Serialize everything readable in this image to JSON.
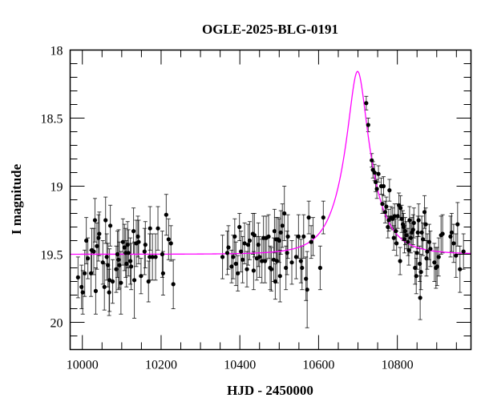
{
  "chart_data": {
    "type": "scatter",
    "title": "OGLE-2025-BLG-0191",
    "xlabel": "HJD - 2450000",
    "ylabel": "I magnitude",
    "xlim": [
      9969,
      10987
    ],
    "ylim": [
      20.2,
      18.0
    ],
    "y_inverted": true,
    "x_ticks": [
      10000,
      10200,
      10400,
      10600,
      10800
    ],
    "x_minor_step": 50,
    "y_ticks": [
      18,
      18.5,
      19,
      19.5,
      20
    ],
    "y_tick_labels": [
      "18",
      "18.5",
      "19",
      "19.5",
      "20"
    ],
    "y_minor_step": 0.1,
    "grid": false,
    "colors": {
      "points": "#000000",
      "errorbars": "#000000",
      "model": "#ff00ff"
    },
    "model": {
      "type": "paczynski",
      "t0": 10699,
      "tE": 70,
      "u0": 0.3,
      "baseline": 19.5
    },
    "points_format": [
      "HJD-2450000",
      "I",
      "err"
    ],
    "points": [
      [
        9989,
        19.67,
        0.15
      ],
      [
        9998,
        19.74,
        0.16
      ],
      [
        10001,
        19.78,
        0.16
      ],
      [
        10006,
        19.64,
        0.17
      ],
      [
        10010,
        19.4,
        0.17
      ],
      [
        10014,
        19.53,
        0.15
      ],
      [
        10022,
        19.64,
        0.17
      ],
      [
        10024,
        19.47,
        0.16
      ],
      [
        10029,
        19.48,
        0.17
      ],
      [
        10032,
        19.25,
        0.16
      ],
      [
        10034,
        19.77,
        0.17
      ],
      [
        10037,
        19.44,
        0.17
      ],
      [
        10041,
        19.38,
        0.17
      ],
      [
        10043,
        19.35,
        0.16
      ],
      [
        10052,
        19.56,
        0.16
      ],
      [
        10056,
        19.74,
        0.17
      ],
      [
        10059,
        19.25,
        0.17
      ],
      [
        10062,
        19.52,
        0.17
      ],
      [
        10065,
        19.58,
        0.16
      ],
      [
        10068,
        19.78,
        0.17
      ],
      [
        10069,
        19.69,
        0.23
      ],
      [
        10071,
        19.29,
        0.15
      ],
      [
        10077,
        19.7,
        0.16
      ],
      [
        10086,
        19.61,
        0.17
      ],
      [
        10089,
        19.5,
        0.17
      ],
      [
        10092,
        19.54,
        0.22
      ],
      [
        10094,
        19.58,
        0.17
      ],
      [
        10098,
        19.71,
        0.23
      ],
      [
        10103,
        19.41,
        0.17
      ],
      [
        10107,
        19.45,
        0.17
      ],
      [
        10110,
        19.49,
        0.18
      ],
      [
        10112,
        19.57,
        0.17
      ],
      [
        10115,
        19.43,
        0.17
      ],
      [
        10117,
        19.49,
        0.17
      ],
      [
        10122,
        19.55,
        0.17
      ],
      [
        10124,
        19.59,
        0.17
      ],
      [
        10130,
        19.33,
        0.17
      ],
      [
        10132,
        19.69,
        0.28
      ],
      [
        10137,
        19.42,
        0.17
      ],
      [
        10141,
        19.37,
        0.15
      ],
      [
        10143,
        19.41,
        0.16
      ],
      [
        10149,
        19.66,
        0.13
      ],
      [
        10158,
        19.48,
        0.17
      ],
      [
        10160,
        19.43,
        0.17
      ],
      [
        10168,
        19.7,
        0.15
      ],
      [
        10171,
        19.52,
        0.17
      ],
      [
        10172,
        19.31,
        0.16
      ],
      [
        10178,
        19.52,
        0.17
      ],
      [
        10186,
        19.52,
        0.17
      ],
      [
        10192,
        19.31,
        0.16
      ],
      [
        10203,
        19.5,
        0.17
      ],
      [
        10205,
        19.64,
        0.16
      ],
      [
        10213,
        19.21,
        0.15
      ],
      [
        10219,
        19.39,
        0.15
      ],
      [
        10225,
        19.42,
        0.13
      ],
      [
        10231,
        19.72,
        0.18
      ],
      [
        10356,
        19.52,
        0.16
      ],
      [
        10368,
        19.49,
        0.16
      ],
      [
        10371,
        19.45,
        0.16
      ],
      [
        10379,
        19.59,
        0.12
      ],
      [
        10383,
        19.52,
        0.16
      ],
      [
        10387,
        19.37,
        0.13
      ],
      [
        10390,
        19.57,
        0.16
      ],
      [
        10395,
        19.64,
        0.13
      ],
      [
        10399,
        19.3,
        0.1
      ],
      [
        10403,
        19.48,
        0.15
      ],
      [
        10407,
        19.54,
        0.17
      ],
      [
        10412,
        19.42,
        0.15
      ],
      [
        10418,
        19.61,
        0.13
      ],
      [
        10421,
        19.43,
        0.15
      ],
      [
        10425,
        19.4,
        0.14
      ],
      [
        10433,
        19.35,
        0.15
      ],
      [
        10435,
        19.62,
        0.14
      ],
      [
        10437,
        19.36,
        0.16
      ],
      [
        10443,
        19.53,
        0.16
      ],
      [
        10447,
        19.43,
        0.16
      ],
      [
        10450,
        19.52,
        0.15
      ],
      [
        10456,
        19.55,
        0.16
      ],
      [
        10460,
        19.38,
        0.16
      ],
      [
        10464,
        19.55,
        0.16
      ],
      [
        10467,
        19.38,
        0.16
      ],
      [
        10473,
        19.37,
        0.16
      ],
      [
        10477,
        19.6,
        0.16
      ],
      [
        10480,
        19.61,
        0.16
      ],
      [
        10486,
        19.54,
        0.16
      ],
      [
        10488,
        19.33,
        0.16
      ],
      [
        10490,
        19.7,
        0.13
      ],
      [
        10492,
        19.39,
        0.16
      ],
      [
        10494,
        19.55,
        0.16
      ],
      [
        10497,
        19.39,
        0.16
      ],
      [
        10500,
        19.4,
        0.16
      ],
      [
        10502,
        19.66,
        0.19
      ],
      [
        10504,
        19.34,
        0.16
      ],
      [
        10508,
        19.29,
        0.16
      ],
      [
        10513,
        19.2,
        0.2
      ],
      [
        10517,
        19.6,
        0.16
      ],
      [
        10520,
        19.49,
        0.16
      ],
      [
        10522,
        19.37,
        0.16
      ],
      [
        10532,
        19.56,
        0.16
      ],
      [
        10543,
        19.52,
        0.16
      ],
      [
        10549,
        19.37,
        0.16
      ],
      [
        10555,
        19.55,
        0.16
      ],
      [
        10558,
        19.6,
        0.16
      ],
      [
        10562,
        19.37,
        0.16
      ],
      [
        10568,
        19.68,
        0.16
      ],
      [
        10571,
        19.76,
        0.28
      ],
      [
        10575,
        19.23,
        0.12
      ],
      [
        10581,
        19.41,
        0.12
      ],
      [
        10586,
        19.37,
        0.14
      ],
      [
        10604,
        19.6,
        0.16
      ],
      [
        10612,
        19.23,
        0.12
      ],
      [
        10721,
        18.39,
        0.05
      ],
      [
        10726,
        18.55,
        0.05
      ],
      [
        10735,
        18.81,
        0.05
      ],
      [
        10738,
        18.88,
        0.06
      ],
      [
        10742,
        18.9,
        0.06
      ],
      [
        10745,
        18.97,
        0.07
      ],
      [
        10748,
        19.02,
        0.07
      ],
      [
        10752,
        18.91,
        0.06
      ],
      [
        10759,
        19.0,
        0.06
      ],
      [
        10762,
        19.13,
        0.07
      ],
      [
        10765,
        19.0,
        0.07
      ],
      [
        10769,
        19.19,
        0.08
      ],
      [
        10772,
        19.15,
        0.07
      ],
      [
        10776,
        19.3,
        0.08
      ],
      [
        10778,
        19.25,
        0.08
      ],
      [
        10780,
        19.03,
        0.08
      ],
      [
        10784,
        19.23,
        0.08
      ],
      [
        10788,
        19.24,
        0.08
      ],
      [
        10791,
        19.38,
        0.09
      ],
      [
        10793,
        19.22,
        0.09
      ],
      [
        10796,
        19.33,
        0.09
      ],
      [
        10798,
        19.42,
        0.09
      ],
      [
        10801,
        19.22,
        0.09
      ],
      [
        10804,
        19.14,
        0.09
      ],
      [
        10807,
        19.55,
        0.1
      ],
      [
        10808,
        19.16,
        0.09
      ],
      [
        10811,
        19.24,
        0.1
      ],
      [
        10814,
        19.28,
        0.1
      ],
      [
        10816,
        19.3,
        0.1
      ],
      [
        10818,
        19.39,
        0.1
      ],
      [
        10820,
        19.33,
        0.1
      ],
      [
        10823,
        19.36,
        0.1
      ],
      [
        10827,
        19.41,
        0.1
      ],
      [
        10829,
        19.47,
        0.11
      ],
      [
        10831,
        19.25,
        0.1
      ],
      [
        10834,
        19.38,
        0.11
      ],
      [
        10837,
        19.34,
        0.11
      ],
      [
        10840,
        19.32,
        0.11
      ],
      [
        10842,
        19.27,
        0.11
      ],
      [
        10845,
        19.6,
        0.12
      ],
      [
        10848,
        19.66,
        0.13
      ],
      [
        10850,
        19.49,
        0.12
      ],
      [
        10852,
        19.34,
        0.12
      ],
      [
        10854,
        19.25,
        0.12
      ],
      [
        10857,
        19.57,
        0.13
      ],
      [
        10858,
        19.82,
        0.16
      ],
      [
        10860,
        19.63,
        0.13
      ],
      [
        10862,
        19.34,
        0.12
      ],
      [
        10865,
        19.39,
        0.12
      ],
      [
        10869,
        19.19,
        0.12
      ],
      [
        10872,
        19.28,
        0.12
      ],
      [
        10874,
        19.53,
        0.13
      ],
      [
        10876,
        19.48,
        0.13
      ],
      [
        10881,
        19.41,
        0.13
      ],
      [
        10884,
        19.46,
        0.13
      ],
      [
        10894,
        19.56,
        0.14
      ],
      [
        10898,
        19.6,
        0.15
      ],
      [
        10901,
        19.59,
        0.14
      ],
      [
        10905,
        19.52,
        0.14
      ],
      [
        10911,
        19.36,
        0.14
      ],
      [
        10915,
        19.35,
        0.14
      ],
      [
        10935,
        19.37,
        0.15
      ],
      [
        10938,
        19.34,
        0.14
      ],
      [
        10943,
        19.42,
        0.14
      ],
      [
        10949,
        19.51,
        0.16
      ],
      [
        10953,
        19.28,
        0.16
      ],
      [
        10959,
        19.61,
        0.17
      ],
      [
        10968,
        19.48,
        0.13
      ]
    ]
  }
}
